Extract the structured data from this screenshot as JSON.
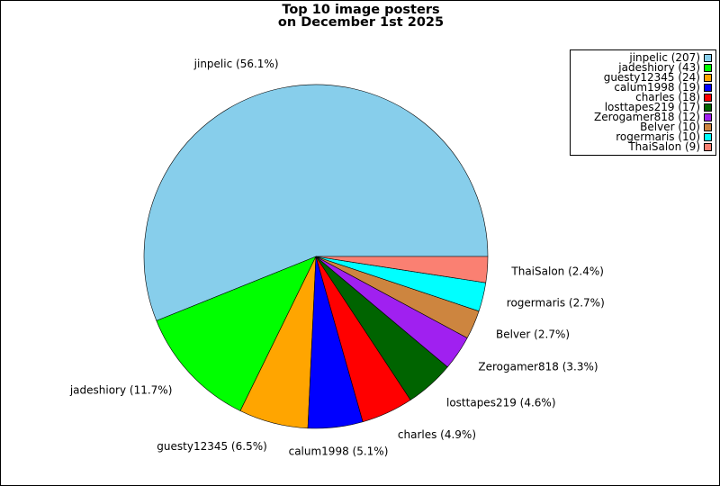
{
  "chart_data": {
    "type": "pie",
    "title": [
      "Top 10 image posters",
      "on December 1st 2025"
    ],
    "slices": [
      {
        "name": "jinpelic",
        "value": 207,
        "percent": "56.1%",
        "color": "#87ceeb"
      },
      {
        "name": "jadeshiory",
        "value": 43,
        "percent": "11.7%",
        "color": "#00ff00"
      },
      {
        "name": "guesty12345",
        "value": 24,
        "percent": "6.5%",
        "color": "#ffa500"
      },
      {
        "name": "calum1998",
        "value": 19,
        "percent": "5.1%",
        "color": "#0000ff"
      },
      {
        "name": "charles",
        "value": 18,
        "percent": "4.9%",
        "color": "#ff0000"
      },
      {
        "name": "losttapes219",
        "value": 17,
        "percent": "4.6%",
        "color": "#006400"
      },
      {
        "name": "Zerogamer818",
        "value": 12,
        "percent": "3.3%",
        "color": "#a020f0"
      },
      {
        "name": "Belver",
        "value": 10,
        "percent": "2.7%",
        "color": "#cd853f"
      },
      {
        "name": "rogermaris",
        "value": 10,
        "percent": "2.7%",
        "color": "#00ffff"
      },
      {
        "name": "ThaiSalon",
        "value": 9,
        "percent": "2.4%",
        "color": "#fa8072"
      }
    ],
    "start_angle_deg": 0,
    "direction": "counterclockwise",
    "legend_position": "top-right"
  }
}
